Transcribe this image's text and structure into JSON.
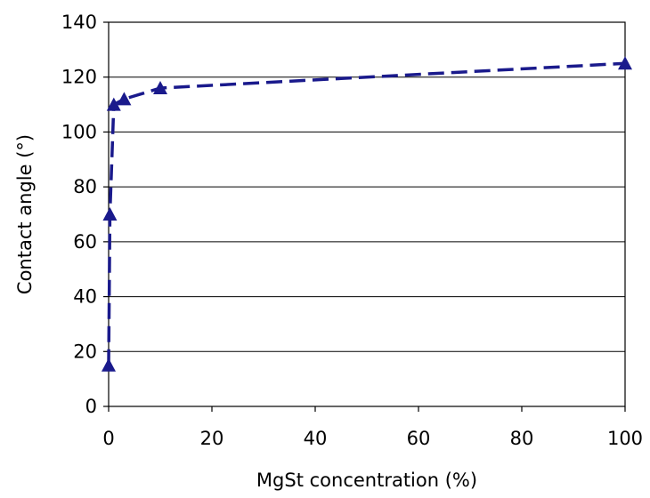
{
  "chart_data": {
    "type": "line",
    "title": "",
    "xlabel": "MgSt concentration (%)",
    "ylabel": "Contact angle (°)",
    "xlim": [
      0,
      100
    ],
    "ylim": [
      0,
      140
    ],
    "xticks": [
      0,
      20,
      40,
      60,
      80,
      100
    ],
    "yticks": [
      0,
      20,
      40,
      60,
      80,
      100,
      120,
      140
    ],
    "grid": {
      "horizontal": true,
      "vertical": false
    },
    "legend": "none",
    "series": [
      {
        "color": "#1a1a8c",
        "line_style": "dashed",
        "marker": "triangle",
        "points": [
          {
            "x": 0,
            "y": 15
          },
          {
            "x": 0.25,
            "y": 70
          },
          {
            "x": 1,
            "y": 110
          },
          {
            "x": 3,
            "y": 112
          },
          {
            "x": 10,
            "y": 116
          },
          {
            "x": 100,
            "y": 125
          }
        ]
      }
    ]
  }
}
